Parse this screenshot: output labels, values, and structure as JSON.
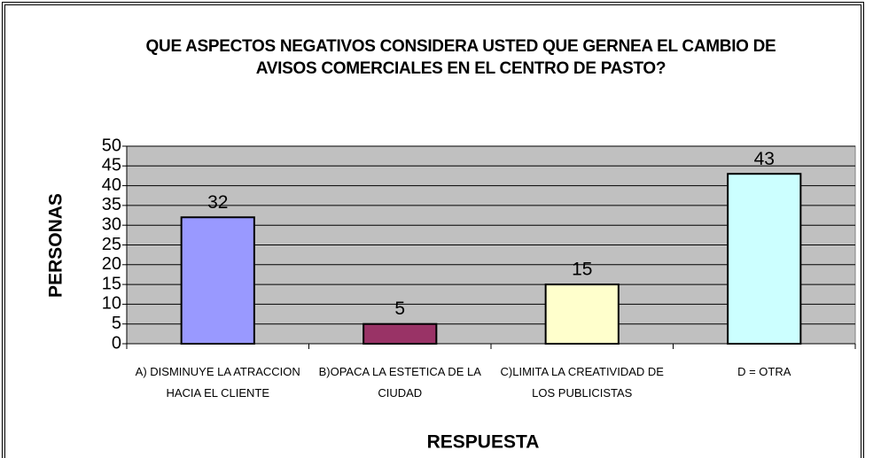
{
  "chart_data": {
    "type": "bar",
    "title": "QUE ASPECTOS NEGATIVOS CONSIDERA USTED QUE GERNEA EL CAMBIO DE AVISOS COMERCIALES EN EL CENTRO DE PASTO?",
    "x_label": "RESPUESTA",
    "y_label": "PERSONAS",
    "categories": [
      "A) DISMINUYE LA ATRACCION HACIA EL CLIENTE",
      "B)OPACA LA ESTETICA DE LA CIUDAD",
      "C)LIMITA LA CREATIVIDAD DE LOS PUBLICISTAS",
      "D = OTRA"
    ],
    "values": [
      32,
      5,
      15,
      43
    ],
    "colors": [
      "#9999ff",
      "#993366",
      "#ffffcc",
      "#ccffff"
    ],
    "ylim": [
      0,
      50
    ],
    "yticks": [
      0,
      5,
      10,
      15,
      20,
      25,
      30,
      35,
      40,
      45,
      50
    ],
    "grid": true
  }
}
